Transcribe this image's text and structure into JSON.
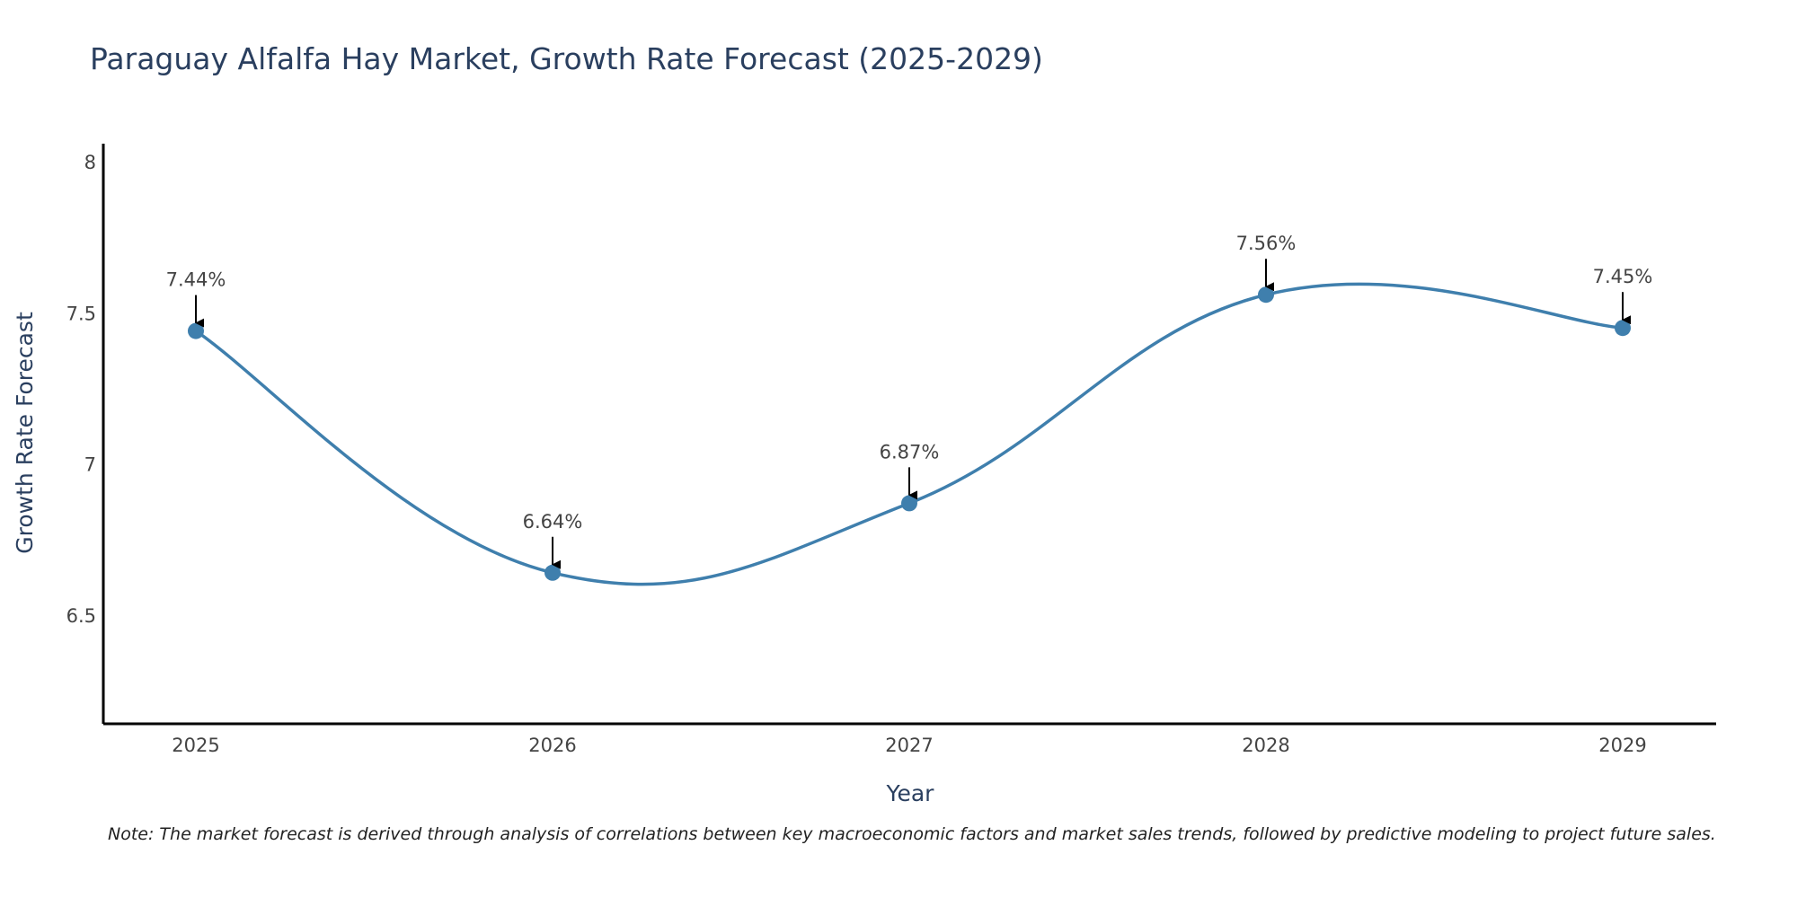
{
  "title": "Paraguay Alfalfa Hay Market, Growth Rate Forecast (2025-2029)",
  "note": "Note: The market forecast is derived through analysis of correlations between key macroeconomic factors and market sales trends, followed by predictive modeling to project future sales.",
  "colors": {
    "line": "#3f7fad",
    "marker": "#3f7fad",
    "axis": "#000000",
    "arrow": "#000000"
  },
  "chart_data": {
    "type": "line",
    "title": "Paraguay Alfalfa Hay Market, Growth Rate Forecast (2025-2029)",
    "xlabel": "Year",
    "ylabel": "Growth Rate Forecast",
    "categories": [
      "2025",
      "2026",
      "2027",
      "2028",
      "2029"
    ],
    "series": [
      {
        "name": "Growth Rate Forecast",
        "values": [
          7.44,
          6.64,
          6.87,
          7.56,
          7.45
        ],
        "labels": [
          "7.44%",
          "6.64%",
          "6.87%",
          "7.56%",
          "7.45%"
        ]
      }
    ],
    "yticks": [
      "6.5",
      "7",
      "7.5",
      "8"
    ],
    "ylim": [
      6.14,
      8.06
    ],
    "smoothing": "spline",
    "grid": false
  }
}
